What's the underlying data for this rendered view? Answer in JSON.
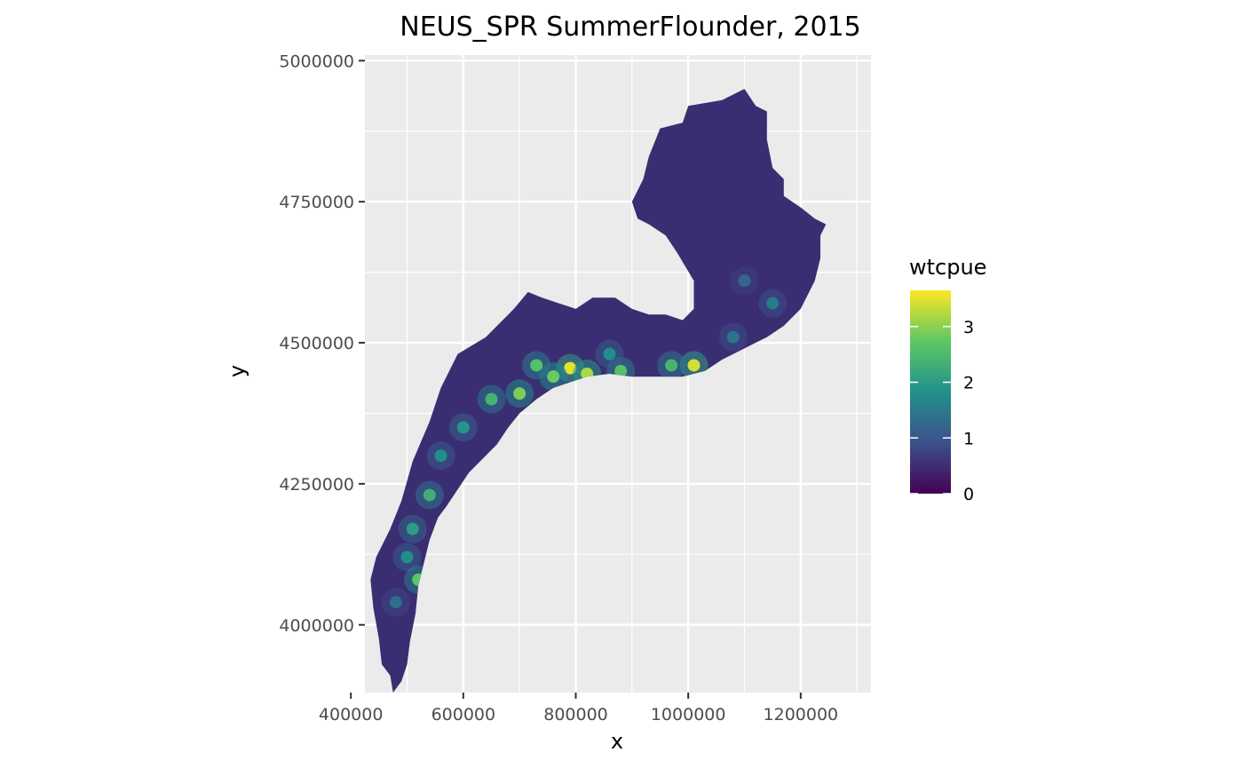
{
  "chart_data": {
    "type": "heatmap",
    "title": "NEUS_SPR SummerFlounder, 2015",
    "xlabel": "x",
    "ylabel": "y",
    "xlim": [
      425000,
      1325000
    ],
    "ylim": [
      3880000,
      5010000
    ],
    "x_ticks": [
      400000,
      600000,
      800000,
      1000000,
      1200000
    ],
    "x_tick_labels": [
      "400000",
      "600000",
      "800000",
      "1000000",
      "1200000"
    ],
    "y_ticks": [
      4000000,
      4250000,
      4500000,
      4750000,
      5000000
    ],
    "y_tick_labels": [
      "4000000",
      "4250000",
      "4500000",
      "4750000",
      "5000000"
    ],
    "grid": true,
    "legend": {
      "title": "wtcpue",
      "position": "right",
      "range": [
        0,
        3.65
      ],
      "ticks": [
        0,
        1,
        2,
        3
      ],
      "tick_labels": [
        "0",
        "1",
        "2",
        "3"
      ],
      "colormap": [
        "#440154",
        "#3b528b",
        "#21908c",
        "#5dc863",
        "#fde725"
      ]
    },
    "region_outline": [
      [
        475000,
        3880000
      ],
      [
        470000,
        3910000
      ],
      [
        455000,
        3930000
      ],
      [
        450000,
        3975000
      ],
      [
        440000,
        4030000
      ],
      [
        435000,
        4080000
      ],
      [
        445000,
        4120000
      ],
      [
        470000,
        4170000
      ],
      [
        490000,
        4220000
      ],
      [
        510000,
        4290000
      ],
      [
        540000,
        4360000
      ],
      [
        560000,
        4420000
      ],
      [
        590000,
        4480000
      ],
      [
        640000,
        4510000
      ],
      [
        690000,
        4560000
      ],
      [
        715000,
        4590000
      ],
      [
        740000,
        4580000
      ],
      [
        770000,
        4570000
      ],
      [
        800000,
        4560000
      ],
      [
        830000,
        4580000
      ],
      [
        870000,
        4580000
      ],
      [
        900000,
        4560000
      ],
      [
        930000,
        4550000
      ],
      [
        960000,
        4550000
      ],
      [
        990000,
        4540000
      ],
      [
        1010000,
        4560000
      ],
      [
        1010000,
        4610000
      ],
      [
        980000,
        4660000
      ],
      [
        960000,
        4690000
      ],
      [
        930000,
        4710000
      ],
      [
        910000,
        4720000
      ],
      [
        900000,
        4750000
      ],
      [
        920000,
        4790000
      ],
      [
        930000,
        4830000
      ],
      [
        950000,
        4880000
      ],
      [
        990000,
        4890000
      ],
      [
        1000000,
        4920000
      ],
      [
        1060000,
        4930000
      ],
      [
        1100000,
        4950000
      ],
      [
        1120000,
        4920000
      ],
      [
        1140000,
        4910000
      ],
      [
        1140000,
        4860000
      ],
      [
        1150000,
        4810000
      ],
      [
        1170000,
        4790000
      ],
      [
        1170000,
        4760000
      ],
      [
        1200000,
        4740000
      ],
      [
        1225000,
        4720000
      ],
      [
        1245000,
        4710000
      ],
      [
        1235000,
        4690000
      ],
      [
        1235000,
        4650000
      ],
      [
        1225000,
        4610000
      ],
      [
        1200000,
        4560000
      ],
      [
        1170000,
        4530000
      ],
      [
        1140000,
        4510000
      ],
      [
        1100000,
        4490000
      ],
      [
        1060000,
        4470000
      ],
      [
        1030000,
        4450000
      ],
      [
        990000,
        4440000
      ],
      [
        950000,
        4440000
      ],
      [
        900000,
        4440000
      ],
      [
        860000,
        4445000
      ],
      [
        820000,
        4440000
      ],
      [
        790000,
        4430000
      ],
      [
        760000,
        4420000
      ],
      [
        730000,
        4400000
      ],
      [
        700000,
        4375000
      ],
      [
        680000,
        4350000
      ],
      [
        660000,
        4320000
      ],
      [
        640000,
        4300000
      ],
      [
        610000,
        4270000
      ],
      [
        590000,
        4240000
      ],
      [
        570000,
        4210000
      ],
      [
        555000,
        4190000
      ],
      [
        540000,
        4150000
      ],
      [
        530000,
        4110000
      ],
      [
        520000,
        4070000
      ],
      [
        515000,
        4020000
      ],
      [
        505000,
        3970000
      ],
      [
        500000,
        3930000
      ],
      [
        490000,
        3900000
      ]
    ],
    "hotspots": [
      {
        "x": 790000,
        "y": 4455000,
        "value": 3.5
      },
      {
        "x": 820000,
        "y": 4445000,
        "value": 3.2
      },
      {
        "x": 760000,
        "y": 4440000,
        "value": 2.8
      },
      {
        "x": 700000,
        "y": 4410000,
        "value": 2.9
      },
      {
        "x": 730000,
        "y": 4460000,
        "value": 2.6
      },
      {
        "x": 650000,
        "y": 4400000,
        "value": 2.4
      },
      {
        "x": 1010000,
        "y": 4460000,
        "value": 3.4
      },
      {
        "x": 970000,
        "y": 4460000,
        "value": 2.4
      },
      {
        "x": 880000,
        "y": 4450000,
        "value": 2.6
      },
      {
        "x": 860000,
        "y": 4480000,
        "value": 1.8
      },
      {
        "x": 600000,
        "y": 4350000,
        "value": 1.9
      },
      {
        "x": 560000,
        "y": 4300000,
        "value": 1.8
      },
      {
        "x": 540000,
        "y": 4230000,
        "value": 2.3
      },
      {
        "x": 510000,
        "y": 4170000,
        "value": 2.0
      },
      {
        "x": 500000,
        "y": 4120000,
        "value": 1.8
      },
      {
        "x": 520000,
        "y": 4080000,
        "value": 2.7
      },
      {
        "x": 480000,
        "y": 4040000,
        "value": 1.3
      },
      {
        "x": 1080000,
        "y": 4510000,
        "value": 1.4
      },
      {
        "x": 1150000,
        "y": 4570000,
        "value": 1.5
      },
      {
        "x": 1100000,
        "y": 4610000,
        "value": 1.2
      }
    ]
  }
}
